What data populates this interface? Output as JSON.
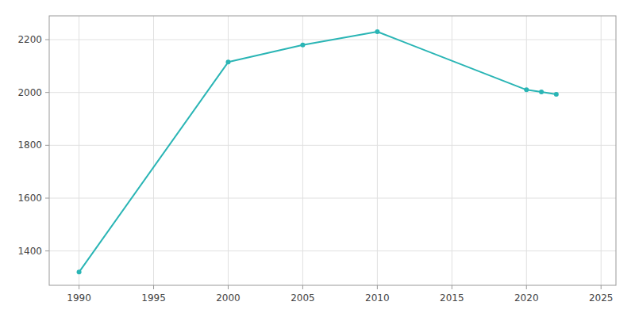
{
  "chart_data": {
    "type": "line",
    "x": [
      1990,
      2000,
      2005,
      2010,
      2020,
      2021,
      2022
    ],
    "values": [
      1320,
      2115,
      2180,
      2230,
      2010,
      2002,
      1993
    ],
    "color": "#2ab5b5",
    "marker": "circle",
    "xlim": [
      1988,
      2026
    ],
    "ylim": [
      1270,
      2290
    ],
    "xticks": [
      1990,
      1995,
      2000,
      2005,
      2010,
      2015,
      2020,
      2025
    ],
    "yticks": [
      1400,
      1600,
      1800,
      2000,
      2200
    ],
    "grid": true
  }
}
